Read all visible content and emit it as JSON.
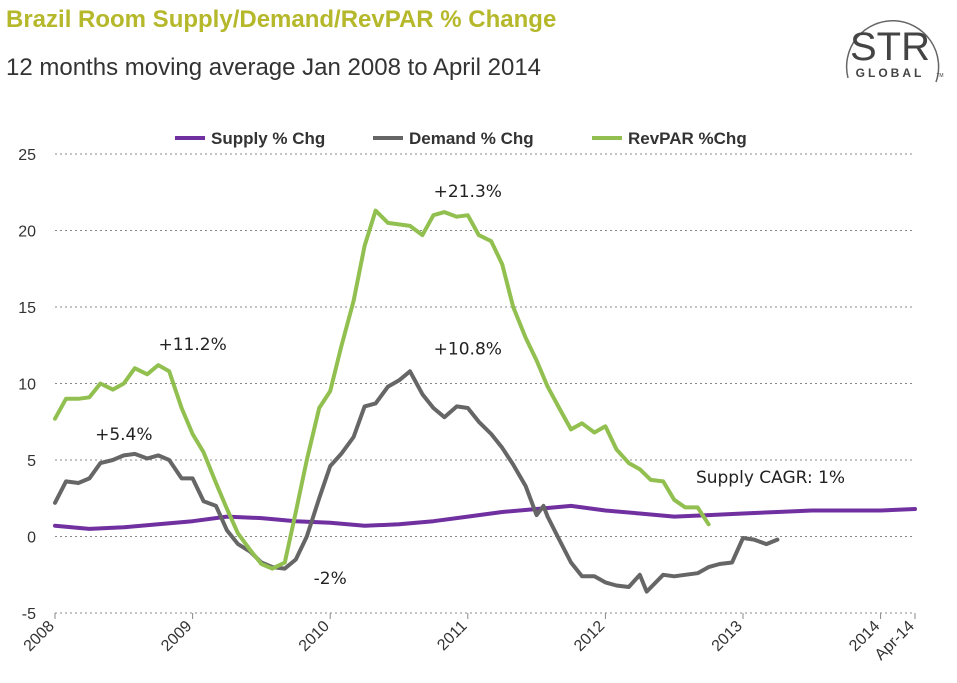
{
  "header": {
    "title": "Brazil Room Supply/Demand/RevPAR % Change",
    "subtitle": "12 months moving average Jan 2008 to April 2014"
  },
  "logo": {
    "line1": "STR",
    "line2": "GLOBAL",
    "mark": "TM"
  },
  "colors": {
    "title": "#b5b82a",
    "supply": "#7030a0",
    "demand": "#666666",
    "revpar": "#92c050"
  },
  "chart_data": {
    "type": "line",
    "title": "Brazil Room Supply/Demand/RevPAR % Change",
    "subtitle": "12 months moving average Jan 2008 to April 2014",
    "xlabel": "",
    "ylabel": "",
    "ylim": [
      -5,
      25
    ],
    "yticks": [
      -5,
      0,
      5,
      10,
      15,
      20,
      25
    ],
    "x_range": [
      2008,
      2014.25
    ],
    "xtick_values": [
      2008,
      2009,
      2010,
      2011,
      2012,
      2013,
      2014,
      2014.25
    ],
    "xtick_labels": [
      "2008",
      "2009",
      "2010",
      "2011",
      "2012",
      "2013",
      "2014",
      "Apr-14"
    ],
    "grid": true,
    "legend_position": "top",
    "series": [
      {
        "name": "Supply % Chg",
        "points": [
          [
            2008,
            0.7
          ],
          [
            2008.25,
            0.5
          ],
          [
            2008.5,
            0.6
          ],
          [
            2008.75,
            0.8
          ],
          [
            2009,
            1.0
          ],
          [
            2009.25,
            1.3
          ],
          [
            2009.5,
            1.2
          ],
          [
            2009.75,
            1.0
          ],
          [
            2010,
            0.9
          ],
          [
            2010.25,
            0.7
          ],
          [
            2010.5,
            0.8
          ],
          [
            2010.75,
            1.0
          ],
          [
            2011,
            1.3
          ],
          [
            2011.25,
            1.6
          ],
          [
            2011.5,
            1.8
          ],
          [
            2011.75,
            2.0
          ],
          [
            2012,
            1.7
          ],
          [
            2012.25,
            1.5
          ],
          [
            2012.5,
            1.3
          ],
          [
            2012.75,
            1.4
          ],
          [
            2013,
            1.5
          ],
          [
            2013.25,
            1.6
          ],
          [
            2013.5,
            1.7
          ],
          [
            2013.75,
            1.7
          ],
          [
            2014,
            1.7
          ],
          [
            2014.25,
            1.8
          ]
        ]
      },
      {
        "name": "Demand % Chg",
        "points": [
          [
            2008,
            2.2
          ],
          [
            2008.08,
            3.6
          ],
          [
            2008.17,
            3.5
          ],
          [
            2008.25,
            3.8
          ],
          [
            2008.33,
            4.8
          ],
          [
            2008.42,
            5.0
          ],
          [
            2008.5,
            5.3
          ],
          [
            2008.58,
            5.4
          ],
          [
            2008.67,
            5.1
          ],
          [
            2008.75,
            5.3
          ],
          [
            2008.83,
            5.0
          ],
          [
            2008.92,
            3.8
          ],
          [
            2009,
            3.8
          ],
          [
            2009.08,
            2.3
          ],
          [
            2009.17,
            2.0
          ],
          [
            2009.25,
            0.4
          ],
          [
            2009.33,
            -0.5
          ],
          [
            2009.42,
            -1.0
          ],
          [
            2009.5,
            -1.7
          ],
          [
            2009.58,
            -2.0
          ],
          [
            2009.67,
            -2.1
          ],
          [
            2009.75,
            -1.5
          ],
          [
            2009.83,
            0.0
          ],
          [
            2009.92,
            2.5
          ],
          [
            2010,
            4.6
          ],
          [
            2010.08,
            5.4
          ],
          [
            2010.17,
            6.5
          ],
          [
            2010.25,
            8.5
          ],
          [
            2010.33,
            8.7
          ],
          [
            2010.42,
            9.8
          ],
          [
            2010.5,
            10.2
          ],
          [
            2010.58,
            10.8
          ],
          [
            2010.67,
            9.3
          ],
          [
            2010.75,
            8.4
          ],
          [
            2010.83,
            7.8
          ],
          [
            2010.92,
            8.5
          ],
          [
            2011,
            8.4
          ],
          [
            2011.08,
            7.5
          ],
          [
            2011.17,
            6.7
          ],
          [
            2011.25,
            5.8
          ],
          [
            2011.33,
            4.7
          ],
          [
            2011.42,
            3.3
          ],
          [
            2011.5,
            1.4
          ],
          [
            2011.55,
            2.0
          ],
          [
            2011.58,
            1.3
          ],
          [
            2011.67,
            -0.3
          ],
          [
            2011.75,
            -1.7
          ],
          [
            2011.83,
            -2.6
          ],
          [
            2011.92,
            -2.6
          ],
          [
            2012,
            -3.0
          ],
          [
            2012.08,
            -3.2
          ],
          [
            2012.17,
            -3.3
          ],
          [
            2012.25,
            -2.5
          ],
          [
            2012.3,
            -3.6
          ],
          [
            2012.42,
            -2.5
          ],
          [
            2012.5,
            -2.6
          ],
          [
            2012.58,
            -2.5
          ],
          [
            2012.67,
            -2.4
          ],
          [
            2012.75,
            -2.0
          ],
          [
            2012.83,
            -1.8
          ],
          [
            2012.92,
            -1.7
          ],
          [
            2013,
            -0.1
          ],
          [
            2013.08,
            -0.2
          ],
          [
            2013.17,
            -0.5
          ],
          [
            2013.25,
            -0.2
          ]
        ]
      },
      {
        "name": "RevPAR %Chg",
        "points": [
          [
            2008,
            7.7
          ],
          [
            2008.08,
            9.0
          ],
          [
            2008.17,
            9.0
          ],
          [
            2008.25,
            9.1
          ],
          [
            2008.33,
            10.0
          ],
          [
            2008.42,
            9.6
          ],
          [
            2008.5,
            10.0
          ],
          [
            2008.58,
            11.0
          ],
          [
            2008.67,
            10.6
          ],
          [
            2008.75,
            11.2
          ],
          [
            2008.83,
            10.8
          ],
          [
            2008.92,
            8.4
          ],
          [
            2009,
            6.7
          ],
          [
            2009.08,
            5.5
          ],
          [
            2009.17,
            3.5
          ],
          [
            2009.25,
            1.8
          ],
          [
            2009.33,
            0.2
          ],
          [
            2009.42,
            -0.9
          ],
          [
            2009.5,
            -1.8
          ],
          [
            2009.58,
            -2.1
          ],
          [
            2009.67,
            -1.7
          ],
          [
            2009.75,
            1.6
          ],
          [
            2009.83,
            5.0
          ],
          [
            2009.92,
            8.4
          ],
          [
            2010,
            9.5
          ],
          [
            2010.08,
            12.4
          ],
          [
            2010.17,
            15.4
          ],
          [
            2010.25,
            19.0
          ],
          [
            2010.33,
            21.3
          ],
          [
            2010.42,
            20.5
          ],
          [
            2010.5,
            20.4
          ],
          [
            2010.58,
            20.3
          ],
          [
            2010.67,
            19.7
          ],
          [
            2010.75,
            21.0
          ],
          [
            2010.83,
            21.2
          ],
          [
            2010.92,
            20.9
          ],
          [
            2011,
            21.0
          ],
          [
            2011.08,
            19.7
          ],
          [
            2011.17,
            19.3
          ],
          [
            2011.25,
            17.8
          ],
          [
            2011.33,
            15.0
          ],
          [
            2011.42,
            13.0
          ],
          [
            2011.5,
            11.5
          ],
          [
            2011.58,
            9.8
          ],
          [
            2011.67,
            8.3
          ],
          [
            2011.75,
            7.0
          ],
          [
            2011.83,
            7.4
          ],
          [
            2011.92,
            6.8
          ],
          [
            2012,
            7.2
          ],
          [
            2012.08,
            5.7
          ],
          [
            2012.17,
            4.8
          ],
          [
            2012.25,
            4.4
          ],
          [
            2012.33,
            3.7
          ],
          [
            2012.42,
            3.6
          ],
          [
            2012.5,
            2.4
          ],
          [
            2012.58,
            1.9
          ],
          [
            2012.67,
            1.9
          ],
          [
            2012.75,
            0.8
          ]
        ]
      }
    ],
    "annotations": [
      {
        "text": "+11.2%",
        "x": 2009.0,
        "y": 12.2
      },
      {
        "text": "+5.4%",
        "x": 2008.5,
        "y": 6.3
      },
      {
        "text": "-2%",
        "x": 2010.0,
        "y": -3.1
      },
      {
        "text": "+21.3%",
        "x": 2011.0,
        "y": 22.2
      },
      {
        "text": "+10.8%",
        "x": 2011.0,
        "y": 11.9
      },
      {
        "text": "Supply CAGR: 1%",
        "x": 2013.2,
        "y": 3.5
      }
    ]
  }
}
